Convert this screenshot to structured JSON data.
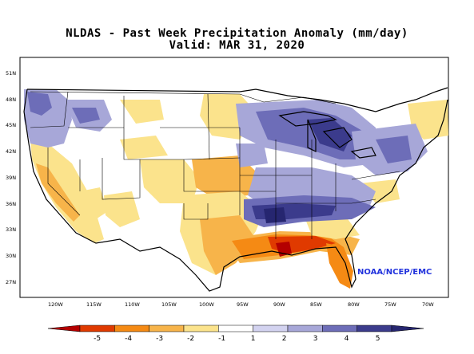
{
  "title": "NLDAS - Past Week Precipitation Anomaly (mm/day)",
  "subtitle": "Valid: MAR 31, 2020",
  "credit": "NOAA/NCEP/EMC",
  "lat_labels": [
    "51N",
    "48N",
    "45N",
    "42N",
    "39N",
    "36N",
    "33N",
    "30N",
    "27N"
  ],
  "lon_labels": [
    "120W",
    "115W",
    "110W",
    "105W",
    "100W",
    "95W",
    "90W",
    "85W",
    "80W",
    "75W",
    "70W"
  ],
  "colorbar": {
    "labels": [
      "-5",
      "-4",
      "-3",
      "-2",
      "-1",
      "1",
      "2",
      "3",
      "4",
      "5"
    ],
    "colors": [
      "#b40000",
      "#e03a00",
      "#f58a14",
      "#f7b44a",
      "#fbe38c",
      "#ffffff",
      "#d3d3f0",
      "#a7a7d8",
      "#6d6db8",
      "#3b3b8c",
      "#262670"
    ]
  },
  "map_data": {
    "type": "precipitation-anomaly-map",
    "units": "mm/day",
    "region": "Contiguous United States",
    "dry_anomaly_areas": [
      "Florida Panhandle",
      "Gulf Coast",
      "Texas",
      "California",
      "Northern Plains",
      "Southern Plains"
    ],
    "wet_anomaly_areas": [
      "Pacific Northwest",
      "Great Lakes",
      "Tennessee Valley",
      "Mid-Atlantic",
      "Northeast"
    ]
  }
}
